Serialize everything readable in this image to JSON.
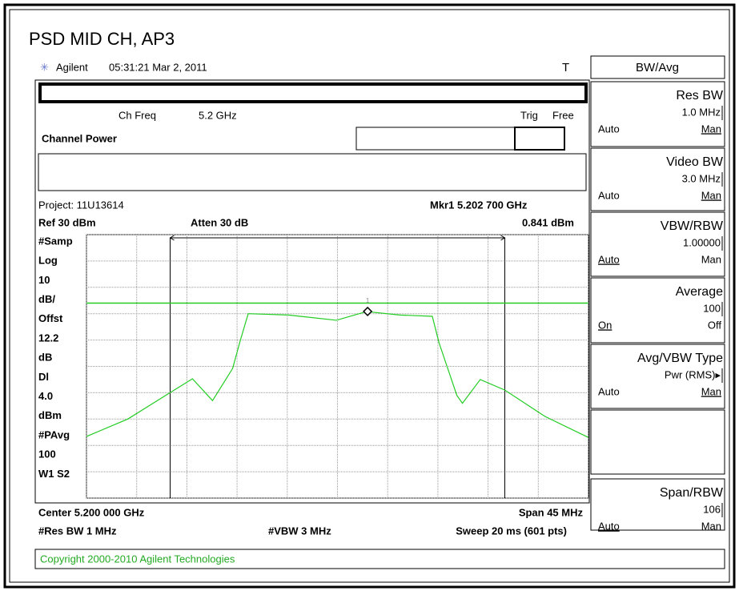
{
  "title": "PSD MID CH, AP3",
  "header": {
    "instrument": "Agilent",
    "time": "05:31:21  Mar 2, 2011",
    "trig": "T"
  },
  "status": {
    "ch_freq_label": "Ch Freq",
    "ch_freq": "5.2 GHz",
    "trig_label": "Trig",
    "trig": "Free",
    "mode": "Channel Power",
    "project": "Project: 11U13614",
    "marker": "Mkr1  5.202 700 GHz",
    "ref": "Ref 30 dBm",
    "atten": "Atten 30 dB",
    "marker_level": "0.841 dBm"
  },
  "left_labels": [
    "#Samp",
    "Log",
    "10",
    "dB/",
    "Offst",
    "12.2",
    "dB",
    "Dl",
    "4.0",
    "dBm",
    "#PAvg",
    "100",
    "W1  S2"
  ],
  "footer": {
    "center": "Center 5.200 000 GHz",
    "span": "Span 45 MHz",
    "res_bw": "#Res BW 1 MHz",
    "vbw": "#VBW 3 MHz",
    "sweep": "Sweep 20 ms (601 pts)"
  },
  "copyright": "Copyright 2000-2010 Agilent Technologies",
  "menu": {
    "title": "BW/Avg",
    "keys": [
      {
        "label": "Res BW",
        "value": "1.0 MHz",
        "left": "Auto",
        "right": "Man",
        "selected": "right"
      },
      {
        "label": "Video BW",
        "value": "3.0 MHz",
        "left": "Auto",
        "right": "Man",
        "selected": "right"
      },
      {
        "label": "VBW/RBW",
        "value": "1.00000",
        "left": "Auto",
        "right": "Man",
        "selected": "left"
      },
      {
        "label": "Average",
        "value": "100",
        "left": "On",
        "right": "Off",
        "selected": "left"
      },
      {
        "label": "Avg/VBW Type",
        "value": "Pwr (RMS)▸",
        "left": "Auto",
        "right": "Man",
        "selected": "right"
      },
      {},
      {
        "label": "Span/RBW",
        "value": "106",
        "left": "Auto",
        "right": "Man",
        "selected": "left"
      }
    ]
  },
  "chart_data": {
    "type": "line",
    "color": "#22cc22",
    "x": [
      5177.5,
      5181.2,
      5184.8,
      5187.0,
      5188.8,
      5190.6,
      5191.3,
      5192.0,
      5195.6,
      5199.9,
      5202.6,
      5205.6,
      5208.5,
      5209.1,
      5210.7,
      5211.2,
      5212.8,
      5215.0,
      5218.6,
      5222.5
    ],
    "values": [
      -46.6,
      -40,
      -30.5,
      -24.7,
      -33,
      -20.8,
      -10,
      0,
      -0.5,
      -2.5,
      0.8,
      -0.5,
      -1,
      -11,
      -31,
      -34,
      -25,
      -29,
      -39,
      -47
    ],
    "xlim": [
      5177.5,
      5222.5
    ],
    "ylim": [
      -70,
      30
    ],
    "xticks": [
      5177.5,
      5182,
      5186.5,
      5191,
      5195.5,
      5200,
      5204.5,
      5209,
      5213.5,
      5218,
      5222.5
    ],
    "yticks": [
      30,
      20,
      10,
      0,
      -10,
      -20,
      -30,
      -40,
      -50,
      -60,
      -70
    ],
    "display_line": 4,
    "integration_bounds": [
      5185,
      5215
    ],
    "marker": {
      "x": 5202.7,
      "y": 0.841,
      "label": "1"
    }
  }
}
